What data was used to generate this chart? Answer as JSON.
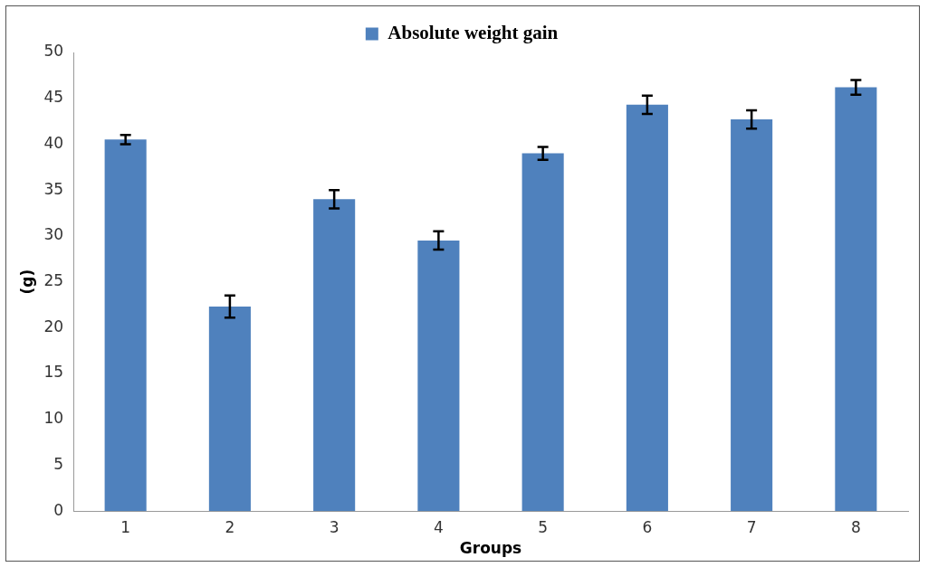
{
  "chart_data": {
    "type": "bar",
    "xlabel": "Groups",
    "ylabel": "(g)",
    "categories": [
      "1",
      "2",
      "3",
      "4",
      "5",
      "6",
      "7",
      "8"
    ],
    "series": [
      {
        "name": "Absolute weight gain",
        "color": "#4f81bd",
        "values": [
          40.5,
          22.3,
          34.0,
          29.5,
          39.0,
          44.3,
          42.7,
          46.2
        ],
        "errors": [
          0.5,
          1.2,
          1.0,
          1.0,
          0.7,
          1.0,
          1.0,
          0.8
        ]
      }
    ],
    "ylim": [
      0,
      50
    ],
    "yticks": [
      0,
      5,
      10,
      15,
      20,
      25,
      30,
      35,
      40,
      45,
      50
    ],
    "grid": false,
    "legend": "top"
  }
}
